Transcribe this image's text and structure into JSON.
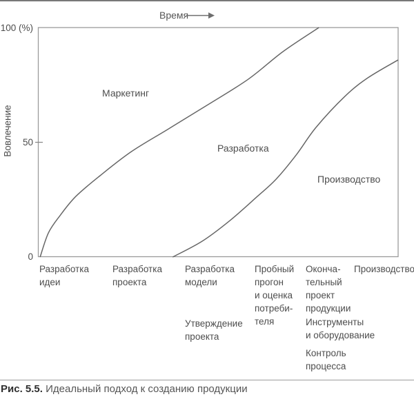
{
  "header": {
    "time_axis_label": "Время"
  },
  "y_axis": {
    "title": "Вовлечение",
    "tick_top": "100 (%)",
    "tick_mid": "50",
    "tick_bottom": "0"
  },
  "regions": {
    "marketing": "Маркетинг",
    "development": "Разработка",
    "production": "Производство"
  },
  "stages": [
    "Разработка\nидеи",
    "Разработка\nпроекта",
    "Разработка\nмодели",
    "Пробный\nпрогон\nи оценка\nпотреби-\nтеля",
    "Оконча-\nтельный\nпроект\nпродукции",
    "Производство"
  ],
  "sub_stages": [
    "Утверждение\nпроекта",
    "Инструменты\nи оборудование",
    "Контроль\nпроцесса"
  ],
  "caption": {
    "number": "Рис. 5.5.",
    "text": "Идеальный подход к созданию продукции"
  },
  "colors": {
    "curve": "#666666",
    "frame": "#9a9a9a",
    "text": "#4d4d4d",
    "caption_number": "#2e2e2e"
  },
  "chart_data": {
    "type": "line",
    "title": "Идеальный подход к созданию продукции",
    "xlabel": "Время",
    "ylabel": "Вовлечение",
    "ylim": [
      0,
      100
    ],
    "yticks": [
      0,
      50,
      100
    ],
    "grid": false,
    "legend": "none",
    "x_axis_note": "время в долях 0–1, без числовых делений",
    "regions": [
      "Маркетинг",
      "Разработка",
      "Производство"
    ],
    "stage_sequence": [
      "Разработка идеи",
      "Разработка проекта",
      "Разработка модели",
      "Пробный прогон и оценка потребителя",
      "Окончательный проект продукции",
      "Производство"
    ],
    "secondary_stages": [
      "Утверждение проекта",
      "Инструменты и оборудование",
      "Контроль процесса"
    ],
    "series": [
      {
        "name": "boundary-marketing-development",
        "x_frac": [
          0.006,
          0.029,
          0.061,
          0.105,
          0.172,
          0.259,
          0.36,
          0.469,
          0.584,
          0.68,
          0.78
        ],
        "y_pct": [
          0,
          10.5,
          18,
          26.4,
          35.4,
          45.9,
          55.6,
          66.1,
          77.5,
          89.5,
          100
        ]
      },
      {
        "name": "boundary-development-production",
        "x_frac": [
          0.374,
          0.456,
          0.533,
          0.609,
          0.661,
          0.718,
          0.772,
          0.852,
          0.916,
          1.0
        ],
        "y_pct": [
          0,
          6.9,
          15.9,
          26.4,
          33.9,
          44.7,
          56.5,
          70,
          78.1,
          85.9
        ]
      }
    ]
  }
}
